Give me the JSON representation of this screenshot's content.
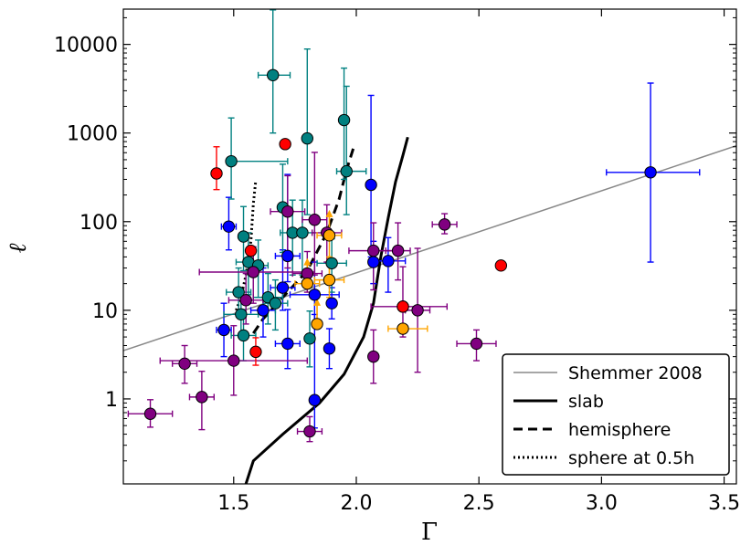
{
  "chart_data": {
    "type": "scatter",
    "title": "",
    "xlabel": "Γ",
    "ylabel": "ℓ",
    "xlim": [
      1.05,
      3.55
    ],
    "ylim": [
      0.11,
      25000
    ],
    "yscale": "log",
    "grid": false,
    "x_ticks": [
      {
        "value": 1.5,
        "label": "1.5"
      },
      {
        "value": 2.0,
        "label": "2.0"
      },
      {
        "value": 2.5,
        "label": "2.5"
      },
      {
        "value": 3.0,
        "label": "3.0"
      },
      {
        "value": 3.5,
        "label": "3.5"
      }
    ],
    "y_ticks": [
      {
        "value": 1,
        "label": "1"
      },
      {
        "value": 10,
        "label": "10"
      },
      {
        "value": 100,
        "label": "100"
      },
      {
        "value": 1000,
        "label": "1000"
      },
      {
        "value": 10000,
        "label": "10000"
      }
    ],
    "legend": {
      "position": "lower-right",
      "entries": [
        {
          "label": "Shemmer 2008",
          "style": "solid-thin",
          "color": "#888888"
        },
        {
          "label": "slab",
          "style": "solid",
          "color": "#000000"
        },
        {
          "label": "hemisphere",
          "style": "dashed",
          "color": "#000000"
        },
        {
          "label": "sphere at 0.5h",
          "style": "dotted",
          "color": "#000000"
        }
      ]
    },
    "lines": [
      {
        "name": "Shemmer 2008",
        "color": "#888888",
        "style": "solid-thin",
        "x": [
          1.05,
          3.55
        ],
        "y": [
          3.5,
          720
        ]
      },
      {
        "name": "slab",
        "color": "#000000",
        "style": "solid",
        "x": [
          1.55,
          1.58,
          1.7,
          1.85,
          1.95,
          2.03,
          2.07,
          2.1,
          2.13,
          2.16,
          2.19,
          2.21
        ],
        "y": [
          0.11,
          0.2,
          0.4,
          0.9,
          1.9,
          5.0,
          12,
          40,
          110,
          280,
          560,
          900
        ]
      },
      {
        "name": "hemisphere",
        "color": "#000000",
        "style": "dashed",
        "x": [
          1.58,
          1.62,
          1.7,
          1.8,
          1.88,
          1.93,
          1.96,
          1.99
        ],
        "y": [
          5.5,
          8,
          14,
          28,
          75,
          180,
          380,
          700
        ]
      },
      {
        "name": "sphere at 0.5h",
        "color": "#000000",
        "style": "dotted",
        "x": [
          1.51,
          1.53,
          1.55,
          1.57,
          1.58,
          1.59
        ],
        "y": [
          10,
          14,
          25,
          60,
          160,
          290
        ]
      }
    ],
    "series": [
      {
        "name": "blue",
        "color": "#0000ff",
        "points": [
          {
            "x": 3.2,
            "y": 360,
            "xerr": [
              0.18,
              0.2
            ],
            "yerr": [
              325,
              3300
            ]
          },
          {
            "x": 2.06,
            "y": 260,
            "xerr": [
              0,
              0
            ],
            "yerr": [
              220,
              2400
            ]
          },
          {
            "x": 2.13,
            "y": 36,
            "xerr": [
              0.07,
              0.07
            ],
            "yerr": [
              20,
              30
            ]
          },
          {
            "x": 2.07,
            "y": 35,
            "xerr": [
              0,
              0
            ],
            "yerr": [
              15,
              25
            ]
          },
          {
            "x": 1.9,
            "y": 12,
            "xerr": [
              0,
              0
            ],
            "yerr": [
              4,
              6
            ]
          },
          {
            "x": 1.89,
            "y": 3.7,
            "xerr": [
              0,
              0
            ],
            "yerr": [
              1.5,
              2.5
            ]
          },
          {
            "x": 1.83,
            "y": 15,
            "xerr": [
              0.1,
              0.1
            ],
            "yerr": [
              8,
              20
            ]
          },
          {
            "x": 1.83,
            "y": 0.97,
            "xerr": [
              0,
              0
            ],
            "yerr": [
              0.5,
              8
            ]
          },
          {
            "x": 1.72,
            "y": 41,
            "xerr": [
              0.05,
              0.05
            ],
            "yerr": [
              20,
              300
            ]
          },
          {
            "x": 1.7,
            "y": 18,
            "xerr": [
              0.05,
              0.05
            ],
            "yerr": [
              8,
              30
            ]
          },
          {
            "x": 1.72,
            "y": 4.2,
            "xerr": [
              0.05,
              0.05
            ],
            "yerr": [
              2,
              6
            ]
          },
          {
            "x": 1.62,
            "y": 10,
            "xerr": [
              0.05,
              0.05
            ],
            "yerr": [
              5,
              20
            ]
          },
          {
            "x": 1.46,
            "y": 6,
            "xerr": [
              0.03,
              0.03
            ],
            "yerr": [
              3,
              6
            ]
          },
          {
            "x": 1.48,
            "y": 88,
            "xerr": [
              0.03,
              0.03
            ],
            "yerr": [
              40,
              100
            ]
          }
        ]
      },
      {
        "name": "teal",
        "color": "#008080",
        "points": [
          {
            "x": 1.66,
            "y": 4500,
            "xerr": [
              0.06,
              0.07
            ],
            "yerr": [
              3500,
              20000
            ]
          },
          {
            "x": 1.95,
            "y": 1400,
            "xerr": [
              0,
              0
            ],
            "yerr": [
              1100,
              4000
            ]
          },
          {
            "x": 1.8,
            "y": 870,
            "xerr": [
              0,
              0
            ],
            "yerr": [
              750,
              8000
            ]
          },
          {
            "x": 1.49,
            "y": 480,
            "xerr": [
              0,
              0.23
            ],
            "yerr": [
              300,
              1000
            ]
          },
          {
            "x": 1.96,
            "y": 370,
            "xerr": [
              0.04,
              0.08
            ],
            "yerr": [
              250,
              3000
            ]
          },
          {
            "x": 1.7,
            "y": 145,
            "xerr": [
              0,
              0
            ],
            "yerr": [
              100,
              300
            ]
          },
          {
            "x": 1.74,
            "y": 75,
            "xerr": [
              0.05,
              0.05
            ],
            "yerr": [
              50,
              100
            ]
          },
          {
            "x": 1.78,
            "y": 75,
            "xerr": [
              0.05,
              0.05
            ],
            "yerr": [
              50,
              100
            ]
          },
          {
            "x": 1.54,
            "y": 68,
            "xerr": [
              0,
              0
            ],
            "yerr": [
              40,
              80
            ]
          },
          {
            "x": 1.56,
            "y": 35,
            "xerr": [
              0.05,
              0.05
            ],
            "yerr": [
              20,
              40
            ]
          },
          {
            "x": 1.6,
            "y": 32,
            "xerr": [
              0.04,
              0.04
            ],
            "yerr": [
              18,
              30
            ]
          },
          {
            "x": 1.9,
            "y": 34,
            "xerr": [
              0.06,
              0.06
            ],
            "yerr": [
              18,
              30
            ]
          },
          {
            "x": 1.52,
            "y": 16,
            "xerr": [
              0.05,
              0.05
            ],
            "yerr": [
              7,
              14
            ]
          },
          {
            "x": 1.64,
            "y": 14,
            "xerr": [
              0.06,
              0.06
            ],
            "yerr": [
              7,
              12
            ]
          },
          {
            "x": 1.67,
            "y": 12,
            "xerr": [
              0.05,
              0.05
            ],
            "yerr": [
              6,
              10
            ]
          },
          {
            "x": 1.53,
            "y": 9,
            "xerr": [
              0.07,
              0.07
            ],
            "yerr": [
              4,
              8
            ]
          },
          {
            "x": 1.54,
            "y": 5.2,
            "xerr": [
              0.05,
              0.05
            ],
            "yerr": [
              2.5,
              5
            ]
          },
          {
            "x": 1.81,
            "y": 4.8,
            "xerr": [
              0,
              0
            ],
            "yerr": [
              2.5,
              5
            ]
          }
        ]
      },
      {
        "name": "purple",
        "color": "#800080",
        "points": [
          {
            "x": 1.16,
            "y": 0.68,
            "xerr": [
              0.09,
              0.09
            ],
            "yerr": [
              0.2,
              0.3
            ]
          },
          {
            "x": 1.3,
            "y": 2.5,
            "xerr": [
              0.05,
              0.05
            ],
            "yerr": [
              1.0,
              1.5
            ]
          },
          {
            "x": 1.37,
            "y": 1.05,
            "xerr": [
              0.05,
              0.05
            ],
            "yerr": [
              0.6,
              1.0
            ]
          },
          {
            "x": 1.5,
            "y": 2.7,
            "xerr": [
              0.3,
              0.3
            ],
            "yerr": [
              1.6,
              4
            ]
          },
          {
            "x": 1.55,
            "y": 13,
            "xerr": [
              0.07,
              0.07
            ],
            "yerr": [
              6,
              13
            ]
          },
          {
            "x": 1.58,
            "y": 27,
            "xerr": [
              0.22,
              0.25
            ],
            "yerr": [
              15,
              25
            ]
          },
          {
            "x": 1.72,
            "y": 130,
            "xerr": [
              0.07,
              0.07
            ],
            "yerr": [
              100,
              200
            ]
          },
          {
            "x": 1.83,
            "y": 105,
            "xerr": [
              0.05,
              0.05
            ],
            "yerr": [
              80,
              500
            ]
          },
          {
            "x": 1.88,
            "y": 75,
            "xerr": [
              0.06,
              0.06
            ],
            "yerr": [
              40,
              80
            ]
          },
          {
            "x": 1.8,
            "y": 26,
            "xerr": [
              0.06,
              0.06
            ],
            "yerr": [
              10,
              20
            ]
          },
          {
            "x": 1.81,
            "y": 0.43,
            "xerr": [
              0.05,
              0.05
            ],
            "yerr": [
              0.1,
              0.2
            ]
          },
          {
            "x": 2.07,
            "y": 47,
            "xerr": [
              0.1,
              0.1
            ],
            "yerr": [
              30,
              50
            ]
          },
          {
            "x": 2.17,
            "y": 47,
            "xerr": [
              0.05,
              0.05
            ],
            "yerr": [
              25,
              50
            ]
          },
          {
            "x": 2.07,
            "y": 3.0,
            "xerr": [
              0,
              0
            ],
            "yerr": [
              1.5,
              3
            ]
          },
          {
            "x": 2.19,
            "y": 11,
            "xerr": [
              0.13,
              0.18
            ],
            "yerr": [
              6,
              20
            ]
          },
          {
            "x": 2.25,
            "y": 10,
            "xerr": [
              0.05,
              0.05
            ],
            "yerr": [
              8,
              40
            ]
          },
          {
            "x": 2.36,
            "y": 93,
            "xerr": [
              0.05,
              0.05
            ],
            "yerr": [
              20,
              30
            ]
          },
          {
            "x": 2.49,
            "y": 4.2,
            "xerr": [
              0.08,
              0.08
            ],
            "yerr": [
              1.5,
              1.8
            ]
          }
        ]
      },
      {
        "name": "red",
        "color": "#ff0000",
        "points": [
          {
            "x": 1.43,
            "y": 350,
            "xerr": [
              0,
              0
            ],
            "yerr": [
              120,
              350
            ]
          },
          {
            "x": 1.71,
            "y": 750,
            "xerr": [
              0,
              0
            ],
            "yerr": [
              0,
              0
            ]
          },
          {
            "x": 1.57,
            "y": 47,
            "xerr": [
              0,
              0
            ],
            "yerr": [
              0,
              0
            ]
          },
          {
            "x": 1.59,
            "y": 3.4,
            "xerr": [
              0,
              0
            ],
            "yerr": [
              1.0,
              1.5
            ]
          },
          {
            "x": 2.19,
            "y": 11,
            "xerr": [
              0,
              0
            ],
            "yerr": [
              0,
              0
            ]
          },
          {
            "x": 2.59,
            "y": 32,
            "xerr": [
              0,
              0
            ],
            "yerr": [
              0,
              0
            ]
          }
        ]
      },
      {
        "name": "orange",
        "color": "#ffa500",
        "points": [
          {
            "x": 1.89,
            "y": 70,
            "xerr": [
              0.05,
              0.05
            ],
            "yerr": [
              30,
              0
            ],
            "arrow_up": true
          },
          {
            "x": 1.89,
            "y": 22,
            "xerr": [
              0.06,
              0.06
            ],
            "yerr": [
              8,
              0
            ],
            "arrow_up": true
          },
          {
            "x": 1.8,
            "y": 20,
            "xerr": [
              0.05,
              0.05
            ],
            "yerr": [
              0,
              0
            ],
            "arrow_up": true
          },
          {
            "x": 1.84,
            "y": 7,
            "xerr": [
              0,
              0
            ],
            "yerr": [
              0,
              0
            ],
            "arrow_up": true
          },
          {
            "x": 2.19,
            "y": 6.2,
            "xerr": [
              0.06,
              0.1
            ],
            "yerr": [
              0,
              0
            ],
            "arrow_up": false
          }
        ]
      }
    ]
  }
}
